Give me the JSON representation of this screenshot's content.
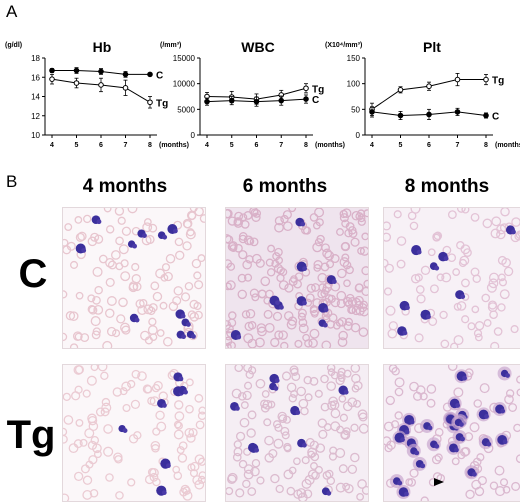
{
  "panel_a_label": "A",
  "panel_b_label": "B",
  "chart_data": [
    {
      "type": "line",
      "title": "Hb",
      "unit_label": "(g/dl)",
      "xlabel": "(months)",
      "x": [
        4,
        5,
        6,
        7,
        8
      ],
      "x_ticks": [
        "4",
        "5",
        "6",
        "7",
        "8"
      ],
      "y_ticks": [
        "10",
        "12",
        "14",
        "16",
        "18"
      ],
      "ylim": [
        10,
        18
      ],
      "series": [
        {
          "name": "C",
          "values": [
            16.7,
            16.7,
            16.6,
            16.3,
            16.3
          ],
          "errors": [
            0.2,
            0.3,
            0.3,
            0.3,
            0.0
          ],
          "marker": "filled"
        },
        {
          "name": "Tg",
          "values": [
            15.8,
            15.4,
            15.2,
            14.9,
            13.4
          ],
          "errors": [
            0.5,
            0.5,
            0.7,
            0.8,
            0.6
          ],
          "marker": "open"
        }
      ]
    },
    {
      "type": "line",
      "title": "WBC",
      "unit_label": "(/mm³)",
      "xlabel": "(months)",
      "x": [
        4,
        5,
        6,
        7,
        8
      ],
      "x_ticks": [
        "4",
        "5",
        "6",
        "7",
        "8"
      ],
      "y_ticks": [
        "0",
        "5000",
        "10000",
        "15000"
      ],
      "ylim": [
        0,
        15000
      ],
      "series": [
        {
          "name": "Tg",
          "values": [
            7500,
            7400,
            7000,
            7800,
            9100
          ],
          "errors": [
            800,
            1100,
            1000,
            900,
            900
          ],
          "marker": "open"
        },
        {
          "name": "C",
          "values": [
            6500,
            6700,
            6500,
            6700,
            7000
          ],
          "errors": [
            700,
            800,
            900,
            900,
            800
          ],
          "marker": "filled"
        }
      ]
    },
    {
      "type": "line",
      "title": "Plt",
      "unit_label": "(X10⁴/mm³)",
      "xlabel": "(months)",
      "x": [
        4,
        5,
        6,
        7,
        8
      ],
      "x_ticks": [
        "4",
        "5",
        "6",
        "7",
        "8"
      ],
      "y_ticks": [
        "0",
        "50",
        "100",
        "150"
      ],
      "ylim": [
        0,
        150
      ],
      "series": [
        {
          "name": "Tg",
          "values": [
            50,
            88,
            95,
            108,
            108
          ],
          "errors": [
            12,
            6,
            8,
            12,
            10
          ],
          "marker": "open"
        },
        {
          "name": "C",
          "values": [
            45,
            38,
            40,
            45,
            38
          ],
          "errors": [
            10,
            8,
            10,
            7,
            5
          ],
          "marker": "filled"
        }
      ]
    }
  ],
  "panel_b": {
    "columns": [
      "4 months",
      "6 months",
      "8 months"
    ],
    "rows": [
      "C",
      "Tg"
    ]
  }
}
